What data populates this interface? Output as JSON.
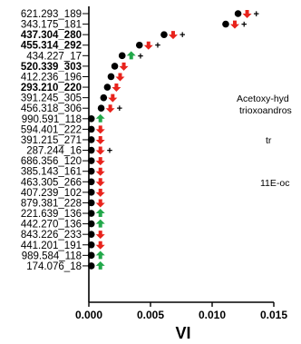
{
  "chart_data": {
    "type": "scatter",
    "xlabel": "VI",
    "xlim": [
      0,
      0.015
    ],
    "xticks": [
      "0.000",
      "0.005",
      "0.010",
      "0.015"
    ],
    "colors": {
      "point": "#000000",
      "up": "#22a84a",
      "down": "#e8231c"
    },
    "annotations": [
      "Acetoxy-hyd",
      "trioxoandros",
      "tr",
      "11E-oc"
    ],
    "rows": [
      {
        "label": "621.293_189",
        "value": 0.0121,
        "bold": false,
        "arrow": "down",
        "plus": "+"
      },
      {
        "label": "343.175_181",
        "value": 0.0111,
        "bold": false,
        "arrow": "down",
        "plus": "+"
      },
      {
        "label": "437.304_280",
        "value": 0.0061,
        "bold": true,
        "arrow": "down",
        "plus": "+"
      },
      {
        "label": "455.314_292",
        "value": 0.0041,
        "bold": true,
        "arrow": "down",
        "plus": "+"
      },
      {
        "label": "434.227_17",
        "value": 0.0027,
        "bold": false,
        "arrow": "up",
        "plus": "+"
      },
      {
        "label": "520.339_303",
        "value": 0.0021,
        "bold": true,
        "arrow": "down",
        "plus": ""
      },
      {
        "label": "412.236_196",
        "value": 0.0018,
        "bold": false,
        "arrow": "down",
        "plus": ""
      },
      {
        "label": "293.210_220",
        "value": 0.0015,
        "bold": true,
        "arrow": "down",
        "plus": ""
      },
      {
        "label": "391.245_305",
        "value": 0.0012,
        "bold": false,
        "arrow": "down",
        "plus": ""
      },
      {
        "label": "456.318_306",
        "value": 0.001,
        "bold": false,
        "arrow": "down",
        "plus": "+"
      },
      {
        "label": "990.591_118",
        "value": 0.0002,
        "bold": false,
        "arrow": "up",
        "plus": ""
      },
      {
        "label": "594.401_222",
        "value": 0.0002,
        "bold": false,
        "arrow": "down",
        "plus": ""
      },
      {
        "label": "391.215_271",
        "value": 0.0002,
        "bold": false,
        "arrow": "down",
        "plus": ""
      },
      {
        "label": "287.244_16",
        "value": 0.0002,
        "bold": false,
        "arrow": "down",
        "plus": "+"
      },
      {
        "label": "686.356_120",
        "value": 0.0002,
        "bold": false,
        "arrow": "down",
        "plus": ""
      },
      {
        "label": "385.143_161",
        "value": 0.0002,
        "bold": false,
        "arrow": "down",
        "plus": ""
      },
      {
        "label": "463.305_266",
        "value": 0.0002,
        "bold": false,
        "arrow": "down",
        "plus": ""
      },
      {
        "label": "407.239_102",
        "value": 0.0002,
        "bold": false,
        "arrow": "down",
        "plus": ""
      },
      {
        "label": "879.381_228",
        "value": 0.0002,
        "bold": false,
        "arrow": "down",
        "plus": ""
      },
      {
        "label": "221.639_136",
        "value": 0.0002,
        "bold": false,
        "arrow": "up",
        "plus": ""
      },
      {
        "label": "442.270_136",
        "value": 0.0002,
        "bold": false,
        "arrow": "up",
        "plus": ""
      },
      {
        "label": "843.226_233",
        "value": 0.0002,
        "bold": false,
        "arrow": "down",
        "plus": ""
      },
      {
        "label": "441.201_191",
        "value": 0.0002,
        "bold": false,
        "arrow": "down",
        "plus": ""
      },
      {
        "label": "989.584_118",
        "value": 0.0002,
        "bold": false,
        "arrow": "up",
        "plus": ""
      },
      {
        "label": "174.076_18",
        "value": 0.0002,
        "bold": false,
        "arrow": "up",
        "plus": ""
      }
    ]
  }
}
